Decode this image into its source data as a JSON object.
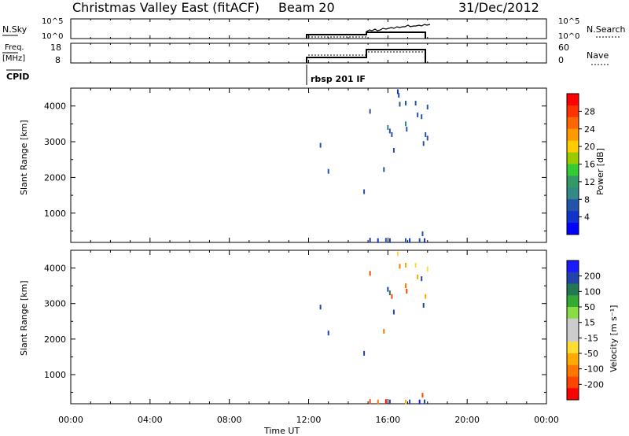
{
  "header": {
    "station": "Christmas Valley East (fitACF)",
    "beam": "Beam 20",
    "date": "31/Dec/2012"
  },
  "panels": {
    "nsky": {
      "label": "N.Sky",
      "right_label": "N.Search",
      "tick_top": "10^5",
      "tick_bottom": "10^0"
    },
    "freq": {
      "label_line1": "Freq.",
      "label_line2": "[MHz]",
      "right_label": "Nave",
      "left_ticks": [
        "18",
        "8"
      ],
      "right_ticks": [
        "60",
        "0"
      ]
    },
    "cpid": {
      "label": "CPID",
      "program": "rbsp 201 IF"
    }
  },
  "colorbars": {
    "power": {
      "title": "Power [dB]",
      "labels": [
        "28",
        "24",
        "20",
        "16",
        "12",
        "8",
        "4"
      ],
      "colors": [
        "#ff0000",
        "#ff3300",
        "#ff6600",
        "#ff9900",
        "#ffcc00",
        "#99cc00",
        "#33cc33",
        "#339966",
        "#338888",
        "#2255aa",
        "#1133cc",
        "#0000ff"
      ]
    },
    "velocity": {
      "title": "Velocity [m s⁻¹]",
      "labels": [
        "200",
        "100",
        "50",
        "15",
        "-15",
        "-50",
        "-100",
        "-200"
      ],
      "colors": [
        "#1a1aff",
        "#2244aa",
        "#227755",
        "#33aa33",
        "#88dd44",
        "#cccccc",
        "#cccccc",
        "#ffdd33",
        "#ffaa00",
        "#ff7700",
        "#ff4400",
        "#ff0000"
      ]
    }
  },
  "chart_data": [
    {
      "type": "scatter",
      "name_of_panel": "power",
      "ylabel": "Slant Range [km]",
      "xlabel": "",
      "ylim": [
        180,
        4500
      ],
      "yticks": [
        1000,
        2000,
        3000,
        4000
      ],
      "x_ticks": [
        "00:00",
        "04:00",
        "08:00",
        "12:00",
        "16:00",
        "20:00",
        "00:00"
      ],
      "xlim_hours": [
        0,
        24
      ],
      "points": [
        {
          "t": 12.6,
          "r": 2900,
          "c": "#2255aa"
        },
        {
          "t": 13.0,
          "r": 2170,
          "c": "#2255aa"
        },
        {
          "t": 14.8,
          "r": 1600,
          "c": "#2255aa"
        },
        {
          "t": 15.1,
          "r": 3850,
          "c": "#2255aa"
        },
        {
          "t": 15.8,
          "r": 2220,
          "c": "#2255aa"
        },
        {
          "t": 16.0,
          "r": 3400,
          "c": "#338888"
        },
        {
          "t": 16.1,
          "r": 3300,
          "c": "#2255aa"
        },
        {
          "t": 16.2,
          "r": 3200,
          "c": "#2255aa"
        },
        {
          "t": 16.3,
          "r": 2760,
          "c": "#2255aa"
        },
        {
          "t": 16.5,
          "r": 4400,
          "c": "#1133cc"
        },
        {
          "t": 16.55,
          "r": 4300,
          "c": "#2255aa"
        },
        {
          "t": 16.6,
          "r": 4050,
          "c": "#2255aa"
        },
        {
          "t": 16.9,
          "r": 4080,
          "c": "#2255aa"
        },
        {
          "t": 16.9,
          "r": 3500,
          "c": "#338888"
        },
        {
          "t": 16.95,
          "r": 3350,
          "c": "#2255aa"
        },
        {
          "t": 17.4,
          "r": 4080,
          "c": "#2255aa"
        },
        {
          "t": 17.5,
          "r": 3750,
          "c": "#2255aa"
        },
        {
          "t": 17.7,
          "r": 3700,
          "c": "#2255aa"
        },
        {
          "t": 17.8,
          "r": 2950,
          "c": "#2255aa"
        },
        {
          "t": 17.9,
          "r": 3200,
          "c": "#2255aa"
        },
        {
          "t": 18.0,
          "r": 3970,
          "c": "#2255aa"
        },
        {
          "t": 18.0,
          "r": 3100,
          "c": "#2255aa"
        },
        {
          "t": 15.1,
          "r": 240,
          "c": "#1133cc"
        },
        {
          "t": 15.5,
          "r": 230,
          "c": "#1133cc"
        },
        {
          "t": 15.9,
          "r": 240,
          "c": "#2255aa"
        },
        {
          "t": 16.1,
          "r": 230,
          "c": "#1133cc"
        },
        {
          "t": 16.9,
          "r": 230,
          "c": "#2255aa"
        },
        {
          "t": 17.1,
          "r": 230,
          "c": "#1133cc"
        },
        {
          "t": 17.6,
          "r": 230,
          "c": "#2255aa"
        },
        {
          "t": 17.75,
          "r": 420,
          "c": "#2255aa"
        },
        {
          "t": 17.85,
          "r": 230,
          "c": "#1133cc"
        }
      ]
    },
    {
      "type": "scatter",
      "name_of_panel": "velocity",
      "ylabel": "Slant Range [km]",
      "xlabel": "Time UT",
      "ylim": [
        180,
        4500
      ],
      "yticks": [
        1000,
        2000,
        3000,
        4000
      ],
      "x_ticks": [
        "00:00",
        "04:00",
        "08:00",
        "12:00",
        "16:00",
        "20:00",
        "00:00"
      ],
      "xlim_hours": [
        0,
        24
      ],
      "points": [
        {
          "t": 12.6,
          "r": 2900,
          "c": "#2244aa"
        },
        {
          "t": 13.0,
          "r": 2170,
          "c": "#2244aa"
        },
        {
          "t": 14.8,
          "r": 1600,
          "c": "#2244aa"
        },
        {
          "t": 15.1,
          "r": 3850,
          "c": "#ff4400"
        },
        {
          "t": 15.8,
          "r": 2220,
          "c": "#ff7700"
        },
        {
          "t": 16.0,
          "r": 3400,
          "c": "#2244aa"
        },
        {
          "t": 16.1,
          "r": 3300,
          "c": "#227755"
        },
        {
          "t": 16.2,
          "r": 3200,
          "c": "#ff4400"
        },
        {
          "t": 16.3,
          "r": 2760,
          "c": "#2244aa"
        },
        {
          "t": 16.5,
          "r": 4400,
          "c": "#ffdd33"
        },
        {
          "t": 16.6,
          "r": 4050,
          "c": "#ff7700"
        },
        {
          "t": 16.9,
          "r": 4080,
          "c": "#ffaa00"
        },
        {
          "t": 16.9,
          "r": 3500,
          "c": "#ff7700"
        },
        {
          "t": 16.95,
          "r": 3350,
          "c": "#ff4400"
        },
        {
          "t": 17.4,
          "r": 4080,
          "c": "#ffdd33"
        },
        {
          "t": 17.5,
          "r": 3750,
          "c": "#ffaa00"
        },
        {
          "t": 17.7,
          "r": 3700,
          "c": "#2244aa"
        },
        {
          "t": 17.8,
          "r": 2950,
          "c": "#2244aa"
        },
        {
          "t": 17.9,
          "r": 3200,
          "c": "#ffaa00"
        },
        {
          "t": 18.0,
          "r": 3970,
          "c": "#ffdd33"
        },
        {
          "t": 15.1,
          "r": 240,
          "c": "#ff4400"
        },
        {
          "t": 15.5,
          "r": 230,
          "c": "#ff7700"
        },
        {
          "t": 15.9,
          "r": 240,
          "c": "#ff0000"
        },
        {
          "t": 16.1,
          "r": 230,
          "c": "#2244aa"
        },
        {
          "t": 16.9,
          "r": 230,
          "c": "#ffaa00"
        },
        {
          "t": 17.1,
          "r": 230,
          "c": "#2244aa"
        },
        {
          "t": 17.6,
          "r": 230,
          "c": "#1a1aff"
        },
        {
          "t": 17.75,
          "r": 420,
          "c": "#ff4400"
        },
        {
          "t": 17.85,
          "r": 230,
          "c": "#2244aa"
        }
      ]
    }
  ]
}
